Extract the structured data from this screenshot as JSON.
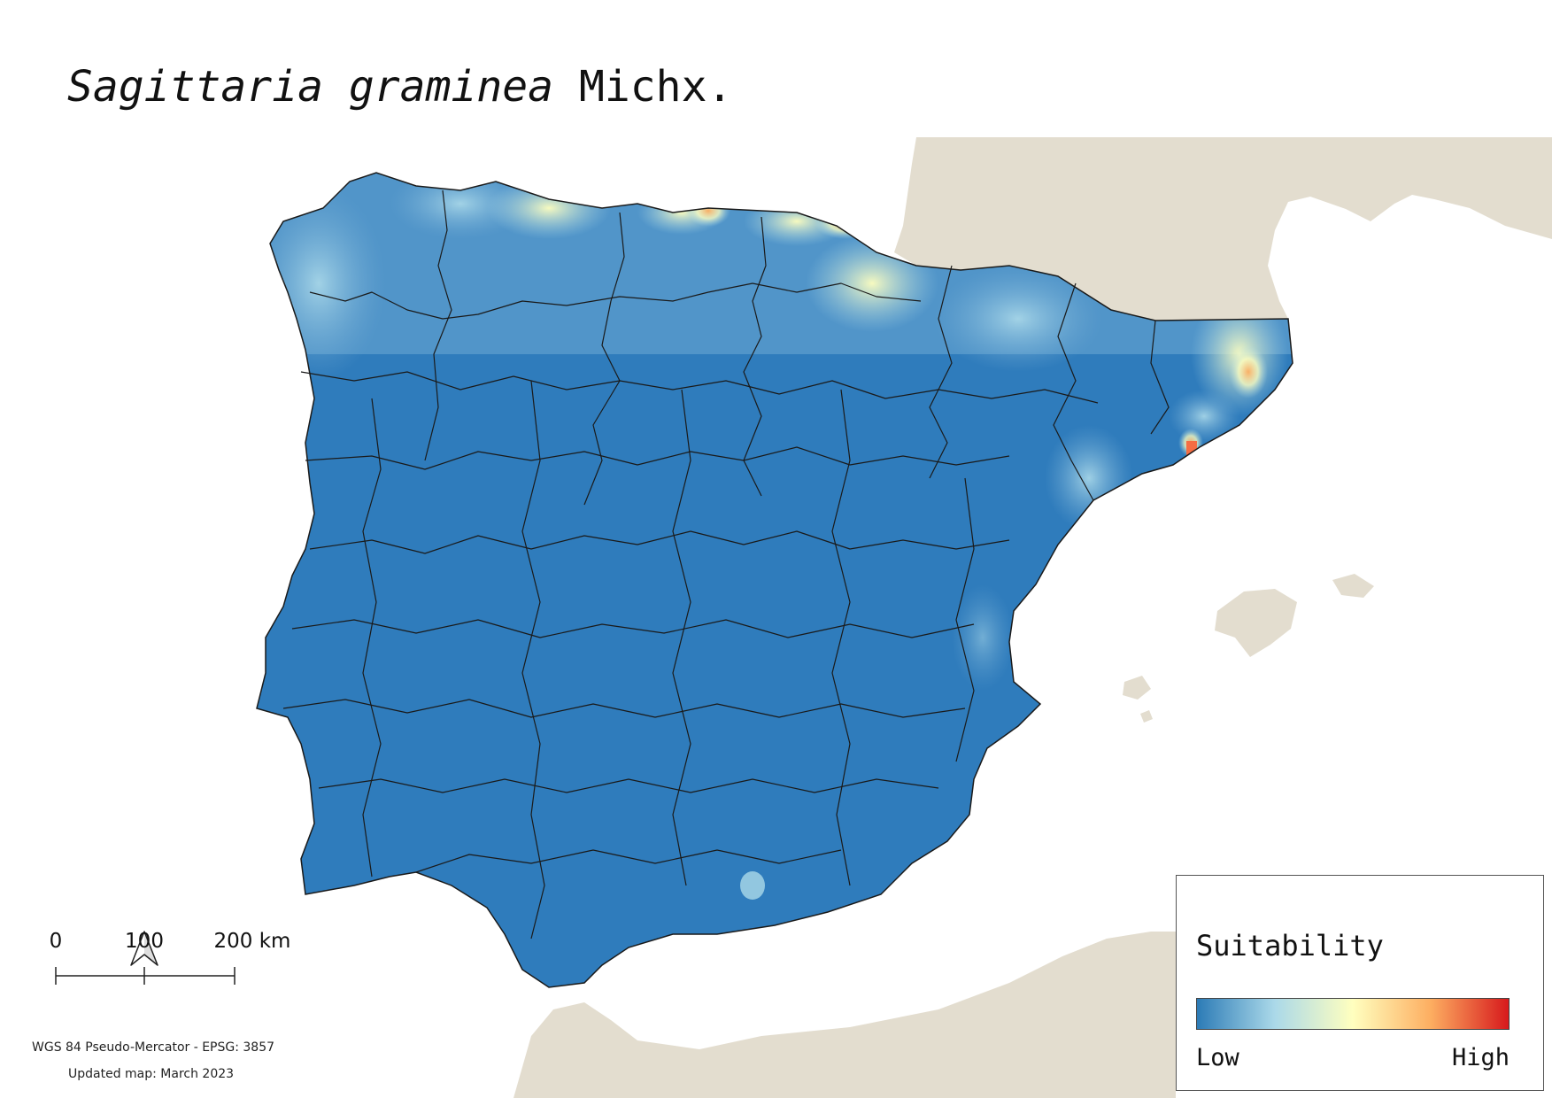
{
  "title": {
    "species": "Sagittaria graminea",
    "authority": "Michx."
  },
  "legend": {
    "title": "Suitability",
    "low_label": "Low",
    "high_label": "High",
    "ramp_colors": [
      "#2c7bb6",
      "#abd9e9",
      "#ffffbf",
      "#fdae61",
      "#d7191c"
    ]
  },
  "scalebar": {
    "labels": [
      "0",
      "100",
      "200 km"
    ]
  },
  "footer": {
    "crs": "WGS 84 Pseudo-Mercator  - EPSG: 3857",
    "updated": "Updated map: March 2023"
  },
  "colors": {
    "land_background": "#e3ddcf",
    "water": "#ffffff",
    "low_suitability": "#2f7cbc",
    "boundaries": "#1a1a1a"
  }
}
